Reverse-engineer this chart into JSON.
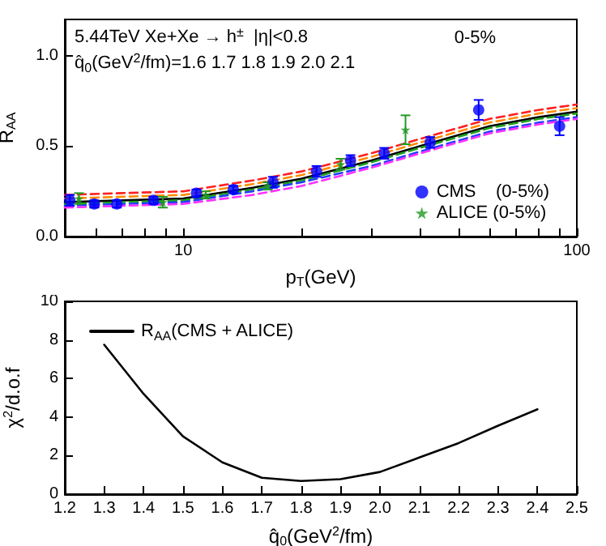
{
  "chart_data": [
    {
      "type": "line",
      "xlabel": "p$_{T}$(GeV)",
      "ylabel": "R$_{AA}$",
      "log": "x",
      "xlim": [
        5,
        100
      ],
      "ylim": [
        0,
        1.2
      ],
      "xticks": [
        {
          "value": 5,
          "label": null
        },
        {
          "value": 6,
          "label": null
        },
        {
          "value": 7,
          "label": null
        },
        {
          "value": 8,
          "label": null
        },
        {
          "value": 9,
          "label": null
        },
        10,
        {
          "value": 20,
          "label": null
        },
        {
          "value": 30,
          "label": null
        },
        {
          "value": 40,
          "label": null
        },
        {
          "value": 50,
          "label": null
        },
        {
          "value": 60,
          "label": null
        },
        {
          "value": 70,
          "label": null
        },
        {
          "value": 80,
          "label": null
        },
        {
          "value": 90,
          "label": null
        },
        100
      ],
      "yticks": [
        {
          "value": 0,
          "label": "0.0"
        },
        {
          "value": 0.5,
          "label": "0.5"
        },
        {
          "value": 1,
          "label": "1.0"
        }
      ],
      "annotations": [
        "5.44TeV Xe+Xe → h$^{±}$  |η|<0.8",
        "q̂$_{0}$(GeV$^{2}$/fm)=1.6 1.7 1.8 1.9 2.0 2.1",
        "0-5%"
      ],
      "legend": "bottom right",
      "grid": false,
      "series": [
        {
          "line_style": "dashed",
          "color": "#ff2020",
          "x": [
            5,
            7,
            10,
            15,
            20,
            30,
            40,
            60,
            80,
            100
          ],
          "values": [
            0.23,
            0.24,
            0.25,
            0.31,
            0.36,
            0.46,
            0.54,
            0.65,
            0.7,
            0.73
          ]
        },
        {
          "line_style": "dashed",
          "color": "#ff8c00",
          "x": [
            5,
            7,
            10,
            15,
            20,
            30,
            40,
            60,
            80,
            100
          ],
          "values": [
            0.21,
            0.22,
            0.23,
            0.29,
            0.34,
            0.44,
            0.52,
            0.63,
            0.68,
            0.71
          ]
        },
        {
          "line_style": "solid",
          "color": "#000000",
          "x": [
            5,
            7,
            10,
            15,
            20,
            30,
            40,
            60,
            80,
            100
          ],
          "values": [
            0.19,
            0.2,
            0.21,
            0.27,
            0.32,
            0.42,
            0.5,
            0.61,
            0.66,
            0.69
          ]
        },
        {
          "line_style": "dashed",
          "color": "#20a020",
          "x": [
            5,
            7,
            10,
            15,
            20,
            30,
            40,
            60,
            80,
            100
          ],
          "values": [
            0.18,
            0.19,
            0.2,
            0.26,
            0.31,
            0.41,
            0.49,
            0.6,
            0.65,
            0.68
          ]
        },
        {
          "line_style": "dashed",
          "color": "#2040ff",
          "x": [
            5,
            7,
            10,
            15,
            20,
            30,
            40,
            60,
            80,
            100
          ],
          "values": [
            0.17,
            0.18,
            0.19,
            0.25,
            0.3,
            0.39,
            0.47,
            0.58,
            0.63,
            0.66
          ]
        },
        {
          "line_style": "dashed",
          "color": "#ff30ff",
          "x": [
            5,
            7,
            10,
            15,
            20,
            30,
            40,
            60,
            80,
            100
          ],
          "values": [
            0.16,
            0.17,
            0.18,
            0.23,
            0.28,
            0.38,
            0.46,
            0.57,
            0.62,
            0.65
          ]
        },
        {
          "type": "scatter",
          "name": "CMS    (0-5%)",
          "marker": "circle",
          "color": "#0000ff",
          "x": [
            5.15,
            5.94,
            6.78,
            8.4,
            10.8,
            13.4,
            16.9,
            21.8,
            26.6,
            32.4,
            42.4,
            56.3,
            90.4
          ],
          "values": [
            0.2,
            0.18,
            0.18,
            0.2,
            0.24,
            0.26,
            0.3,
            0.36,
            0.42,
            0.46,
            0.52,
            0.7,
            0.61
          ],
          "errors": [
            0.03,
            0.02,
            0.02,
            0.02,
            0.02,
            0.02,
            0.03,
            0.03,
            0.03,
            0.03,
            0.03,
            0.055,
            0.05
          ]
        },
        {
          "type": "scatter",
          "name": "ALICE (0-5%)",
          "marker": "star",
          "color": "#229922",
          "x": [
            5.43,
            8.87,
            11.4,
            16.4,
            25.1,
            36.7
          ],
          "values": [
            0.21,
            0.19,
            0.23,
            0.28,
            0.4,
            0.59
          ],
          "errors": [
            0.03,
            0.03,
            0.02,
            0.02,
            0.03,
            0.08
          ]
        }
      ]
    },
    {
      "type": "line",
      "xlabel": "q̂$_{0}$(GeV$^{2}$/fm)",
      "ylabel": "χ$^{2}$/d.o.f",
      "xlim": [
        1.2,
        2.5
      ],
      "ylim": [
        0,
        10
      ],
      "xticks": [
        1.2,
        1.3,
        1.4,
        1.5,
        1.6,
        1.7,
        1.8,
        1.9,
        {
          "value": 2,
          "label": "2.0"
        },
        2.1,
        2.2,
        2.3,
        2.4,
        2.5
      ],
      "yticks": [
        0,
        2,
        4,
        6,
        8,
        10
      ],
      "legend": "top left",
      "grid": false,
      "series": [
        {
          "line_style": "solid",
          "marker": "none",
          "name": "R$_{AA}$(CMS + ALICE)",
          "color": "#000000",
          "x": [
            1.3,
            1.4,
            1.5,
            1.6,
            1.7,
            1.8,
            1.9,
            2.0,
            2.1,
            2.2,
            2.3,
            2.4
          ],
          "values": [
            7.75,
            5.2,
            3.0,
            1.65,
            0.85,
            0.68,
            0.78,
            1.15,
            1.9,
            2.65,
            3.55,
            4.4
          ]
        }
      ]
    }
  ]
}
